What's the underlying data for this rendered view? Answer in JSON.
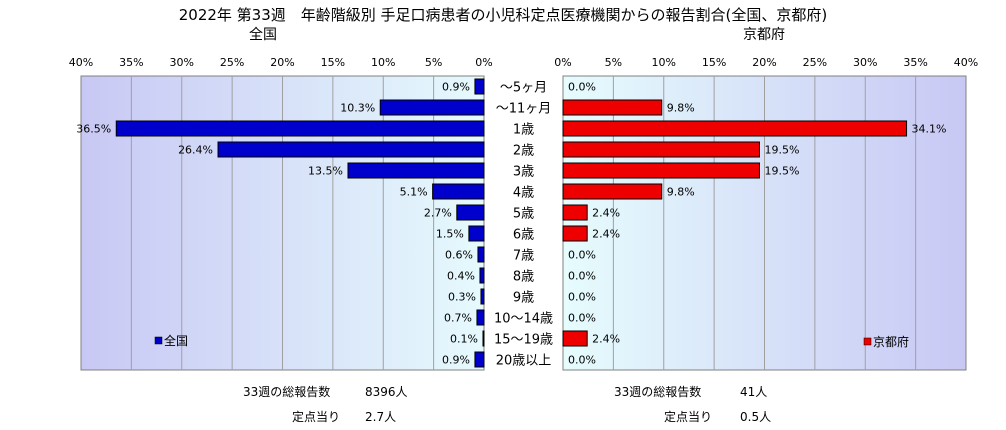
{
  "title": "2022年 第33週　年齢階級別 手足口病患者の小児科定点医療機関からの報告割合(全国、京都府)",
  "chart_data": [
    {
      "type": "bar",
      "orientation": "horizontal",
      "direction": "right-to-left",
      "title": "全国",
      "categories": [
        "～5ヶ月",
        "～11ヶ月",
        "1歳",
        "2歳",
        "3歳",
        "4歳",
        "5歳",
        "6歳",
        "7歳",
        "8歳",
        "9歳",
        "10～14歳",
        "15～19歳",
        "20歳以上"
      ],
      "values": [
        0.9,
        10.3,
        36.5,
        26.4,
        13.5,
        5.1,
        2.7,
        1.5,
        0.6,
        0.4,
        0.3,
        0.7,
        0.1,
        0.9
      ],
      "value_labels": [
        "0.9%",
        "10.3%",
        "36.5%",
        "26.4%",
        "13.5%",
        "5.1%",
        "2.7%",
        "1.5%",
        "0.6%",
        "0.4%",
        "0.3%",
        "0.7%",
        "0.1%",
        "0.9%"
      ],
      "xlim": [
        0,
        40
      ],
      "ticks": [
        "0%",
        "5%",
        "10%",
        "15%",
        "20%",
        "25%",
        "30%",
        "35%",
        "40%"
      ],
      "legend": "全国",
      "legend_position": "bottom-left",
      "bar_color": "#0000cc",
      "plot_background": "gradient-lavender-to-lightcyan",
      "grid": true
    },
    {
      "type": "bar",
      "orientation": "horizontal",
      "direction": "left-to-right",
      "title": "京都府",
      "categories": [
        "～5ヶ月",
        "～11ヶ月",
        "1歳",
        "2歳",
        "3歳",
        "4歳",
        "5歳",
        "6歳",
        "7歳",
        "8歳",
        "9歳",
        "10～14歳",
        "15～19歳",
        "20歳以上"
      ],
      "values": [
        0.0,
        9.8,
        34.1,
        19.5,
        19.5,
        9.8,
        2.4,
        2.4,
        0.0,
        0.0,
        0.0,
        0.0,
        2.4,
        0.0
      ],
      "value_labels": [
        "0.0%",
        "9.8%",
        "34.1%",
        "19.5%",
        "19.5%",
        "9.8%",
        "2.4%",
        "2.4%",
        "0.0%",
        "0.0%",
        "0.0%",
        "0.0%",
        "2.4%",
        "0.0%"
      ],
      "xlim": [
        0,
        40
      ],
      "ticks": [
        "0%",
        "5%",
        "10%",
        "15%",
        "20%",
        "25%",
        "30%",
        "35%",
        "40%"
      ],
      "legend": "京都府",
      "legend_position": "bottom-right",
      "bar_color": "#ee0000",
      "plot_background": "gradient-lightcyan-to-lavender",
      "grid": true
    }
  ],
  "footer": {
    "national_total_label": "33週の総報告数",
    "national_total_value": "8396人",
    "national_per_label": "定点当り",
    "national_per_value": "2.7人",
    "kyoto_total_label": "33週の総報告数",
    "kyoto_total_value": "41人",
    "kyoto_per_label": "定点当り",
    "kyoto_per_value": "0.5人"
  }
}
